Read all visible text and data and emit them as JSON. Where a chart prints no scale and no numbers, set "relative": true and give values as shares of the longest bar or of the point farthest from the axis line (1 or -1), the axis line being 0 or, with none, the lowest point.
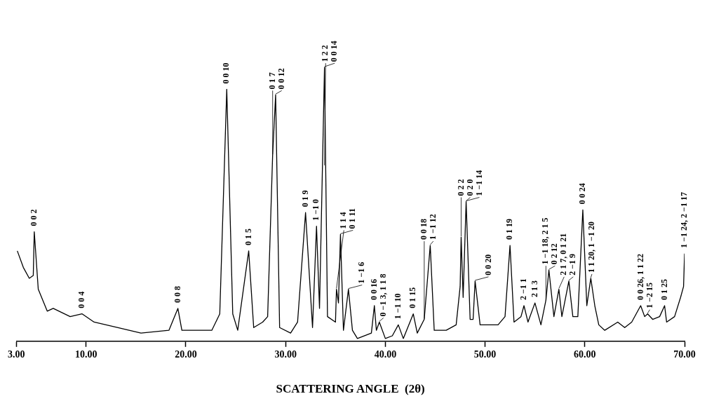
{
  "chart_data": {
    "type": "line",
    "relative": true,
    "xlabel": "SCATTERING ANGLE  (2θ)",
    "xlim": [
      3,
      70
    ],
    "xticks": [
      {
        "value": 3,
        "label": "3.00"
      },
      {
        "value": 10,
        "label": "10.00"
      },
      {
        "value": 20,
        "label": "20.00"
      },
      {
        "value": 30,
        "label": "30.00"
      },
      {
        "value": 40,
        "label": "40.00"
      },
      {
        "value": 50,
        "label": "50.00"
      },
      {
        "value": 60,
        "label": "60.00"
      },
      {
        "value": 70,
        "label": "70.00"
      }
    ],
    "series": [
      {
        "color": "#000000",
        "x": [
          3.1,
          3.7,
          4.3,
          4.7,
          4.8,
          5.2,
          6.1,
          6.7,
          8.4,
          9.6,
          10.8,
          13.2,
          15.5,
          18.3,
          19.2,
          19.6,
          22.6,
          23.4,
          24.1,
          24.7,
          25.2,
          26.3,
          26.8,
          27.7,
          28.2,
          28.7,
          29.0,
          29.4,
          30.5,
          31.2,
          32.0,
          32.7,
          33.1,
          33.4,
          33.9,
          34.2,
          35.0,
          35.1,
          35.3,
          35.5,
          35.8,
          36.3,
          36.7,
          37.2,
          38.6,
          38.9,
          39.1,
          39.4,
          40.0,
          40.7,
          41.3,
          41.8,
          42.8,
          43.2,
          43.9,
          44.5,
          44.9,
          46.1,
          47.1,
          47.5,
          47.6,
          47.8,
          48.1,
          48.5,
          48.8,
          49.0,
          49.5,
          51.3,
          52.0,
          52.5,
          52.9,
          53.6,
          53.9,
          54.3,
          55.0,
          55.6,
          56.1,
          56.4,
          56.9,
          57.4,
          57.7,
          58.4,
          58.8,
          59.3,
          59.8,
          60.2,
          60.6,
          61.0,
          61.4,
          62.0,
          63.3,
          64.0,
          64.7,
          65.6,
          66.0,
          66.3,
          66.8,
          67.5,
          68.0,
          68.2,
          69.0,
          69.6,
          69.9,
          70.0
        ],
        "values": [
          0.33,
          0.27,
          0.23,
          0.24,
          0.4,
          0.19,
          0.11,
          0.12,
          0.09,
          0.1,
          0.07,
          0.05,
          0.03,
          0.04,
          0.12,
          0.04,
          0.04,
          0.1,
          0.92,
          0.1,
          0.04,
          0.33,
          0.05,
          0.07,
          0.09,
          0.68,
          0.9,
          0.05,
          0.03,
          0.07,
          0.47,
          0.05,
          0.42,
          0.12,
          1.0,
          0.09,
          0.07,
          0.19,
          0.14,
          0.39,
          0.04,
          0.19,
          0.04,
          0.01,
          0.03,
          0.13,
          0.04,
          0.07,
          0.01,
          0.02,
          0.06,
          0.01,
          0.1,
          0.03,
          0.08,
          0.35,
          0.04,
          0.04,
          0.06,
          0.2,
          0.38,
          0.16,
          0.51,
          0.08,
          0.08,
          0.22,
          0.06,
          0.06,
          0.09,
          0.35,
          0.07,
          0.09,
          0.13,
          0.07,
          0.14,
          0.06,
          0.15,
          0.26,
          0.09,
          0.19,
          0.09,
          0.22,
          0.09,
          0.09,
          0.48,
          0.13,
          0.23,
          0.13,
          0.06,
          0.04,
          0.07,
          0.05,
          0.07,
          0.13,
          0.09,
          0.1,
          0.08,
          0.09,
          0.13,
          0.07,
          0.09,
          0.16,
          0.2,
          0.32
        ]
      }
    ],
    "annotations": [
      {
        "text": "0 0 2",
        "x": 4.8,
        "y": 0.4
      },
      {
        "text": "0 0 4",
        "x": 9.6,
        "y": 0.1
      },
      {
        "text": "0 0 8",
        "x": 19.2,
        "y": 0.12
      },
      {
        "text": "0 0 10",
        "x": 24.1,
        "y": 0.92
      },
      {
        "text": "0 1 5",
        "x": 26.3,
        "y": 0.33
      },
      {
        "text": "0 1 7",
        "x": 28.7,
        "y": 0.68
      },
      {
        "text": "0 0 12",
        "x": 29.0,
        "y": 0.9
      },
      {
        "text": "0 1 9",
        "x": 32.0,
        "y": 0.47
      },
      {
        "text": "1 −1 0",
        "x": 33.1,
        "y": 0.42
      },
      {
        "text": "1 2 2",
        "x": 33.9,
        "y": 0.64
      },
      {
        "text": "0 0 14",
        "x": 33.9,
        "y": 1.0
      },
      {
        "text": "1 1 4",
        "x": 35.1,
        "y": 0.19
      },
      {
        "text": "0 1 11",
        "x": 35.5,
        "y": 0.39
      },
      {
        "text": "1 −1 6",
        "x": 36.3,
        "y": 0.19
      },
      {
        "text": "0 0 16",
        "x": 38.9,
        "y": 0.13
      },
      {
        "text": "0 −1 3, 1 1 8",
        "x": 39.4,
        "y": 0.07
      },
      {
        "text": "1 −1 10",
        "x": 41.3,
        "y": 0.06
      },
      {
        "text": "0 1 15",
        "x": 42.8,
        "y": 0.1
      },
      {
        "text": "0 0 18",
        "x": 43.9,
        "y": 0.08
      },
      {
        "text": "1 −1 12",
        "x": 44.5,
        "y": 0.35
      },
      {
        "text": "0 2 2",
        "x": 47.6,
        "y": 0.38
      },
      {
        "text": "0 2 0",
        "x": 48.1,
        "y": 0.51
      },
      {
        "text": "1 −1 14",
        "x": 48.1,
        "y": 0.51
      },
      {
        "text": "0 0 20",
        "x": 49.0,
        "y": 0.22
      },
      {
        "text": "0 1 19",
        "x": 52.5,
        "y": 0.35
      },
      {
        "text": "2 −1 1",
        "x": 53.9,
        "y": 0.13
      },
      {
        "text": "2 1 3",
        "x": 55.0,
        "y": 0.14
      },
      {
        "text": "1 −1 18, 2 1 5",
        "x": 56.1,
        "y": 0.15
      },
      {
        "text": "0 2 12",
        "x": 56.4,
        "y": 0.26
      },
      {
        "text": "2 1 7, 0 1 21",
        "x": 57.4,
        "y": 0.19
      },
      {
        "text": "2 −1 9",
        "x": 58.4,
        "y": 0.22
      },
      {
        "text": "0 0 24",
        "x": 59.8,
        "y": 0.48
      },
      {
        "text": "1 1 20, 1 −1 20",
        "x": 60.6,
        "y": 0.23
      },
      {
        "text": "0 0 26, 1 1 22",
        "x": 65.6,
        "y": 0.13
      },
      {
        "text": "1 −2 15",
        "x": 66.3,
        "y": 0.1
      },
      {
        "text": "0 1 25",
        "x": 68.0,
        "y": 0.13
      },
      {
        "text": "1 −1 24, 2 −1 17",
        "x": 70.0,
        "y": 0.32
      }
    ]
  }
}
